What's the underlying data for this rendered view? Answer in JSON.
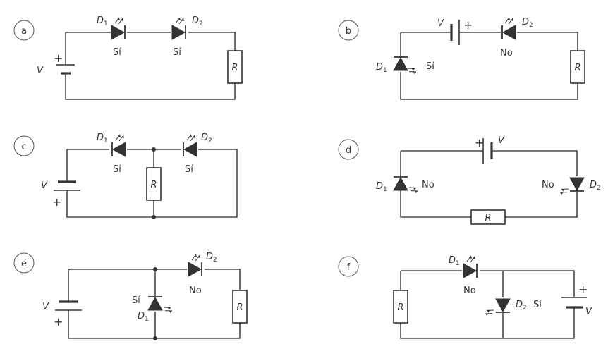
{
  "panels": {
    "a": {
      "id": "a",
      "d1": "D",
      "d1_sub": "1",
      "d2": "D",
      "d2_sub": "2",
      "d1_state": "Sí",
      "d2_state": "Sí",
      "v": "V",
      "r": "R",
      "plus": "+"
    },
    "b": {
      "id": "b",
      "d1": "D",
      "d1_sub": "1",
      "d2": "D",
      "d2_sub": "2",
      "d1_state": "Sí",
      "d2_state": "No",
      "v": "V",
      "r": "R",
      "plus": "+"
    },
    "c": {
      "id": "c",
      "d1": "D",
      "d1_sub": "1",
      "d2": "D",
      "d2_sub": "2",
      "d1_state": "Sí",
      "d2_state": "Sí",
      "v": "V",
      "r": "R",
      "plus": "+"
    },
    "d": {
      "id": "d",
      "d1": "D",
      "d1_sub": "1",
      "d2": "D",
      "d2_sub": "2",
      "d1_state": "No",
      "d2_state": "No",
      "v": "V",
      "r": "R",
      "plus": "+"
    },
    "e": {
      "id": "e",
      "d1": "D",
      "d1_sub": "1",
      "d2": "D",
      "d2_sub": "2",
      "d1_state": "Sí",
      "d2_state": "No",
      "v": "V",
      "r": "R",
      "plus": "+"
    },
    "f": {
      "id": "f",
      "d1": "D",
      "d1_sub": "1",
      "d2": "D",
      "d2_sub": "2",
      "d1_state": "No",
      "d2_state": "Sí",
      "v": "V",
      "r": "R",
      "plus": "+"
    }
  }
}
